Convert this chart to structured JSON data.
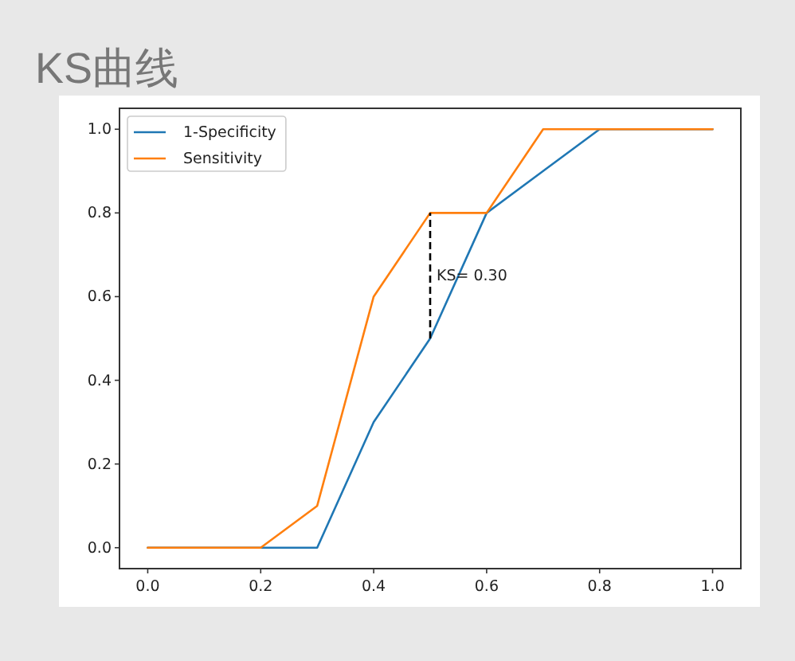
{
  "chart_data": {
    "type": "line",
    "title": "KS曲线",
    "x": [
      0,
      0.1,
      0.2,
      0.3,
      0.4,
      0.5,
      0.6,
      0.7,
      0.8,
      0.9,
      1.0
    ],
    "series": [
      {
        "name": "1-Specificity",
        "color": "#1f77b4",
        "values": [
          0,
          0,
          0,
          0,
          0.3,
          0.5,
          0.8,
          0.9,
          1.0,
          1.0,
          1.0
        ]
      },
      {
        "name": "Sensitivity",
        "color": "#ff7f0e",
        "values": [
          0,
          0,
          0,
          0.1,
          0.6,
          0.8,
          0.8,
          1.0,
          1.0,
          1.0,
          1.0
        ]
      },
      {
        "type": "line",
        "x": [
          0.5,
          0.5
        ],
        "values": [
          0.5,
          0.8
        ],
        "color": "#000000",
        "line_style": "dashed"
      }
    ],
    "xlim": [
      -0.05,
      1.05
    ],
    "ylim": [
      -0.05,
      1.05
    ],
    "xticks": [
      {
        "value": 0,
        "label": "0.0"
      },
      {
        "value": 0.2,
        "label": "0.2"
      },
      {
        "value": 0.4,
        "label": "0.4"
      },
      {
        "value": 0.6,
        "label": "0.6"
      },
      {
        "value": 0.8,
        "label": "0.8"
      },
      {
        "value": 1,
        "label": "1.0"
      }
    ],
    "yticks": [
      {
        "value": 0,
        "label": "0.0"
      },
      {
        "value": 0.2,
        "label": "0.2"
      },
      {
        "value": 0.4,
        "label": "0.4"
      },
      {
        "value": 0.6,
        "label": "0.6"
      },
      {
        "value": 0.8,
        "label": "0.8"
      },
      {
        "value": 1,
        "label": "1.0"
      }
    ],
    "legend": "top left",
    "annotations": [
      {
        "text": "KS= 0.30",
        "x": 0.5,
        "y": 0.65
      }
    ]
  }
}
